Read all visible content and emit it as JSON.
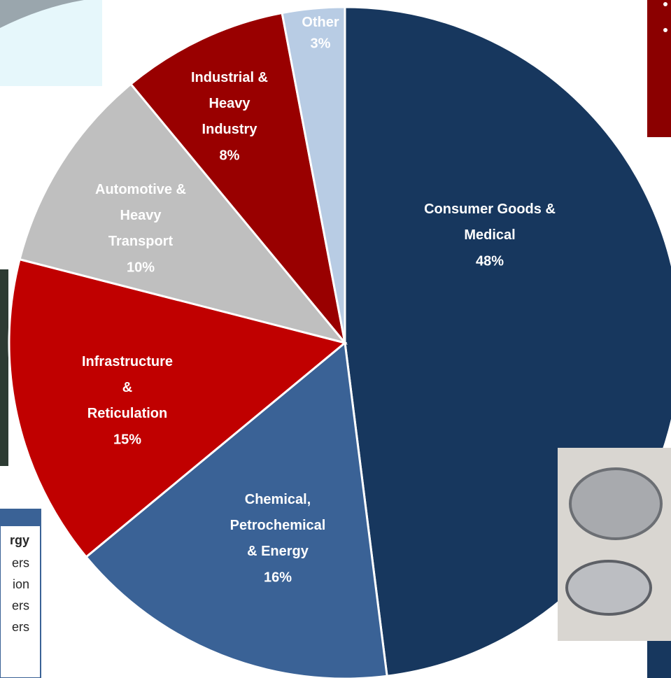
{
  "chart_data": {
    "type": "pie",
    "categories": [
      "Consumer Goods &\nMedical",
      "Chemical,\nPetrochemical\n& Energy",
      "Infrastructure\n&\nReticulation",
      "Automotive &\nHeavy\nTransport",
      "Industrial &\nHeavy\nIndustry",
      "Other"
    ],
    "values": [
      48,
      16,
      15,
      10,
      8,
      3
    ],
    "value_labels": [
      "48%",
      "16%",
      "15%",
      "10%",
      "8%",
      "3%"
    ],
    "colors": [
      "#17375e",
      "#3a6296",
      "#c00000",
      "#bfbfbf",
      "#990000",
      "#b8cce4"
    ]
  },
  "side_panel": {
    "lines": [
      "rgy",
      "ers",
      "ion",
      "ers",
      "ers"
    ]
  }
}
